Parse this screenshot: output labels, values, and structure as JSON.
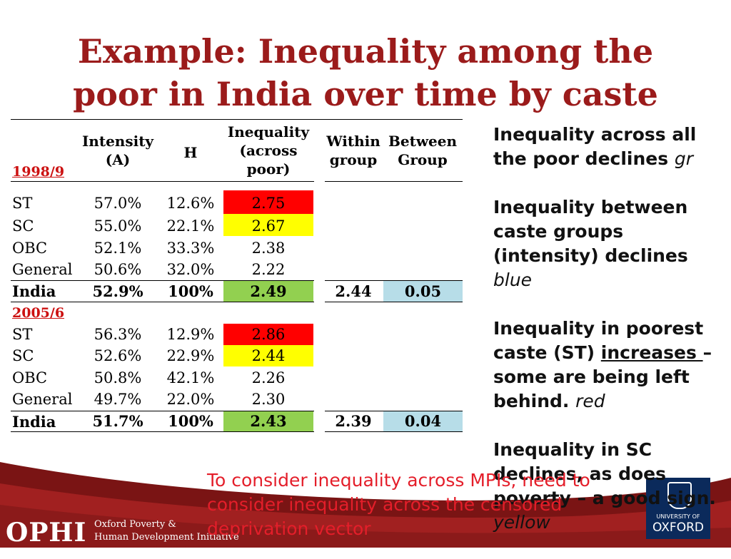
{
  "title": {
    "line1": "Example: Inequality among the",
    "line2": "poor in India over time by caste"
  },
  "table": {
    "headers": {
      "intensity_l1": "Intensity",
      "intensity_l2": "(A)",
      "h": "H",
      "ineq_l1": "Inequality",
      "ineq_l2": "(across",
      "ineq_l3": "poor)",
      "within_l1": "Within",
      "within_l2": "group",
      "between_l1": "Between",
      "between_l2": "Group"
    },
    "period1": {
      "label": "1998/9",
      "rows": [
        {
          "group": "ST",
          "intensity": "57.0%",
          "h": "12.6%",
          "inequality": "2.75"
        },
        {
          "group": "SC",
          "intensity": "55.0%",
          "h": "22.1%",
          "inequality": "2.67"
        },
        {
          "group": "OBC",
          "intensity": "52.1%",
          "h": "33.3%",
          "inequality": "2.38"
        },
        {
          "group": "General",
          "intensity": "50.6%",
          "h": "32.0%",
          "inequality": "2.22"
        }
      ],
      "total": {
        "group": "India",
        "intensity": "52.9%",
        "h": "100%",
        "inequality": "2.49",
        "within": "2.44",
        "between": "0.05"
      }
    },
    "period2": {
      "label": "2005/6",
      "rows": [
        {
          "group": "ST",
          "intensity": "56.3%",
          "h": "12.9%",
          "inequality": "2.86"
        },
        {
          "group": "SC",
          "intensity": "52.6%",
          "h": "22.9%",
          "inequality": "2.44"
        },
        {
          "group": "OBC",
          "intensity": "50.8%",
          "h": "42.1%",
          "inequality": "2.26"
        },
        {
          "group": "General",
          "intensity": "49.7%",
          "h": "22.0%",
          "inequality": "2.30"
        }
      ],
      "total": {
        "group": "India",
        "intensity": "51.7%",
        "h": "100%",
        "inequality": "2.43",
        "within": "2.39",
        "between": "0.04"
      }
    }
  },
  "points": {
    "p1_text": "Inequality across all the poor declines ",
    "p1_color": "gr",
    "p2_text": "Inequality between caste groups (intensity) declines ",
    "p2_color": "blue",
    "p3_a": "Inequality in poorest caste (ST) ",
    "p3_u": "increases ",
    "p3_b": "– some are being left behind. ",
    "p3_color": "red",
    "p4_text": "Inequality in SC declines, as does poverty – a good sign. ",
    "p4_color": "yellow"
  },
  "note": "To consider inequality across MPIs, need to consider inequality across the censored deprivation vector",
  "footer": {
    "ophi_logo": "OPHI",
    "ophi_line1": "Oxford Poverty &",
    "ophi_line2": "Human Development Initiative",
    "oxford_small": "UNIVERSITY OF",
    "oxford_big": "OXFORD"
  },
  "colors": {
    "title": "#9b1b1b",
    "red_highlight": "#ff0000",
    "yellow_highlight": "#ffff00",
    "green_highlight": "#92d050",
    "blue_highlight": "#b7dde8",
    "note": "#e41e2a",
    "footer": "#8b1a1a",
    "oxford_blue": "#0b2a5b"
  }
}
